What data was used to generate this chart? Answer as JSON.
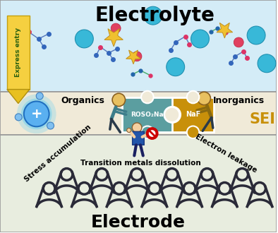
{
  "bg_electrolyte": "#d4ecf7",
  "bg_sei": "#f0ead8",
  "bg_electrode": "#e8eddf",
  "title_electrolyte": "Electrolyte",
  "title_electrode": "Electrode",
  "label_sei": "SEI",
  "label_organics": "Organics",
  "label_inorganics": "Inorganics",
  "label_express": "Express entry",
  "label_roso2na": "ROSO₂Na",
  "label_nafc": "NaF",
  "label_stress": "Stress accumulation",
  "label_transition": "Transition metals dissolution",
  "label_electron": "Electron leakage",
  "border_color": "#999999",
  "fig_width": 3.94,
  "fig_height": 3.3,
  "dpi": 100
}
